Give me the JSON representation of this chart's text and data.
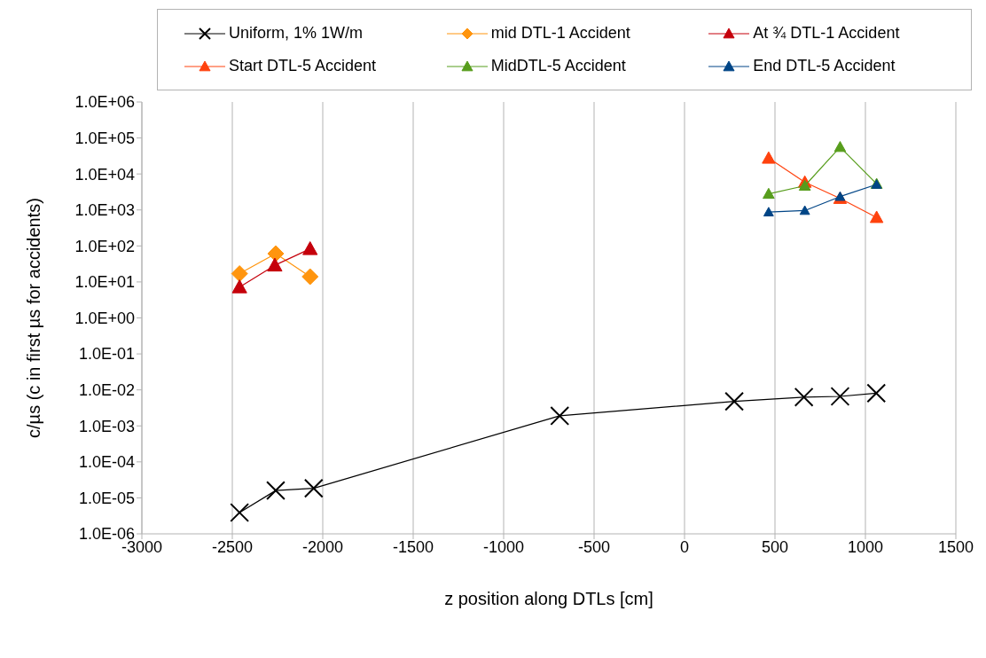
{
  "chart_data": {
    "type": "line",
    "xlabel": "z position along DTLs [cm]",
    "ylabel": "c/µs (c in first µs for accidents)",
    "log": "y",
    "grid": "x",
    "legend": "top",
    "line_style": "solid",
    "xlim": [
      -3000,
      1500
    ],
    "xticks": [
      -3000,
      -2500,
      -2000,
      -1500,
      -1000,
      -500,
      0,
      500,
      1000,
      1500
    ],
    "ylim": [
      1e-06,
      1000000.0
    ],
    "yticks": [
      {
        "value": 1e-06,
        "label": "1.0E-06"
      },
      {
        "value": 1e-05,
        "label": "1.0E-05"
      },
      {
        "value": 0.0001,
        "label": "1.0E-04"
      },
      {
        "value": 0.001,
        "label": "1.0E-03"
      },
      {
        "value": 0.01,
        "label": "1.0E-02"
      },
      {
        "value": 0.1,
        "label": "1.0E-01"
      },
      {
        "value": 1,
        "label": "1.0E+00"
      },
      {
        "value": 10,
        "label": "1.0E+01"
      },
      {
        "value": 100,
        "label": "1.0E+02"
      },
      {
        "value": 1000,
        "label": "1.0E+03"
      },
      {
        "value": 10000,
        "label": "1.0E+04"
      },
      {
        "value": 100000,
        "label": "1.0E+05"
      },
      {
        "value": 1000000,
        "label": "1.0E+06"
      }
    ],
    "series": [
      {
        "name": "Uniform, 1% 1W/m",
        "color": "#000000",
        "marker": "cross",
        "x": [
          -2460,
          -2260,
          -2050,
          -690,
          275,
          660,
          860,
          1060
        ],
        "values": [
          3.9e-06,
          1.6e-05,
          1.85e-05,
          0.0019,
          0.0048,
          0.0063,
          0.0066,
          0.0081
        ]
      },
      {
        "name": "mid DTL-1 Accident",
        "color": "#ff950e",
        "marker": "diamond",
        "x": [
          -2460,
          -2260,
          -2070
        ],
        "values": [
          17,
          61,
          14
        ]
      },
      {
        "name": "At ¾ DTL-1 Accident",
        "color": "#c5000b",
        "marker": "triangle",
        "x": [
          -2460,
          -2265,
          -2070
        ],
        "values": [
          7.2,
          29,
          83
        ]
      },
      {
        "name": "Start DTL-5 Accident",
        "color": "#ff420e",
        "marker": "triangle",
        "x": [
          465,
          665,
          860,
          1062
        ],
        "values": [
          27500,
          5900,
          2100,
          620
        ]
      },
      {
        "name": "MidDTL-5 Accident",
        "color": "#579d1c",
        "marker": "triangle",
        "x": [
          465,
          665,
          860,
          1062
        ],
        "values": [
          2800,
          4700,
          56000,
          5300
        ]
      },
      {
        "name": "End DTL-5 Accident",
        "color": "#004586",
        "marker": "triangle",
        "x": [
          465,
          665,
          860,
          1062
        ],
        "values": [
          870,
          960,
          2350,
          5100
        ]
      }
    ]
  }
}
